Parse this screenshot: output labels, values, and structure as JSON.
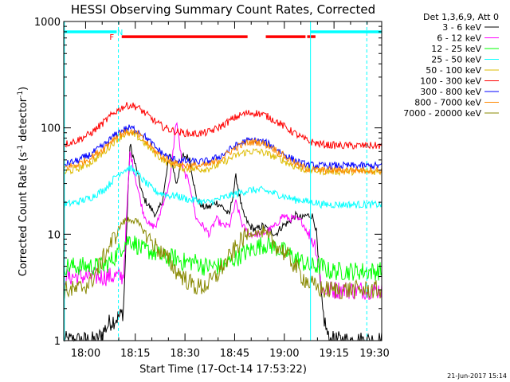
{
  "chart_data": {
    "type": "line",
    "title": "HESSI Observing Summary Count Rates, Corrected",
    "xlabel": "Start Time (17-Oct-14 17:53:22)",
    "ylabel": "Corrected Count Rate (s",
    "ylabel_sup1": "-1",
    "ylabel_mid": " detector",
    "ylabel_sup2": "-1",
    "ylabel_end": ")",
    "x_unit": "minutes since 17:53:22",
    "xlim": [
      0,
      96
    ],
    "ylim": [
      1,
      1000
    ],
    "yscale": "log",
    "x_ticks": [
      {
        "label": "18:00",
        "x": 6.6
      },
      {
        "label": "18:15",
        "x": 21.6
      },
      {
        "label": "18:30",
        "x": 36.6
      },
      {
        "label": "18:45",
        "x": 51.6
      },
      {
        "label": "19:00",
        "x": 66.6
      },
      {
        "label": "19:15",
        "x": 81.6
      },
      {
        "label": "19:30",
        "x": 96.6
      }
    ],
    "y_ticks": [
      {
        "label": "1",
        "y": 1
      },
      {
        "label": "10",
        "y": 10
      },
      {
        "label": "100",
        "y": 100
      },
      {
        "label": "1000",
        "y": 1000
      }
    ],
    "legend_header": "Det 1,3,6,9, Att 0",
    "legend_position": "right",
    "series": [
      {
        "name": "3 - 6 keV",
        "color": "#000000",
        "x": [
          0,
          5,
          10,
          14,
          17,
          18,
          20,
          22,
          24,
          26,
          28,
          30,
          32,
          34,
          36,
          38,
          40,
          42,
          44,
          46,
          48,
          50,
          52,
          54,
          56,
          58,
          60,
          62,
          64,
          66,
          68,
          70,
          72,
          73,
          74,
          75,
          76,
          78,
          80,
          82,
          84,
          86,
          88,
          90,
          92,
          94,
          96
        ],
        "y": [
          1,
          1,
          1,
          1.5,
          1.7,
          1.9,
          70,
          40,
          22,
          18,
          15,
          22,
          60,
          30,
          55,
          52,
          22,
          18,
          18,
          20,
          18,
          15,
          35,
          16,
          12,
          11,
          12,
          11,
          10,
          12,
          13,
          15,
          14,
          15,
          15,
          15,
          12,
          2,
          1,
          1,
          1,
          1,
          1,
          1,
          1,
          1,
          1
        ]
      },
      {
        "name": "6 - 12 keV",
        "color": "#ff00ff",
        "x": [
          0,
          5,
          10,
          14,
          17,
          18,
          20,
          22,
          24,
          26,
          28,
          30,
          32,
          34,
          36,
          38,
          40,
          42,
          44,
          46,
          48,
          50,
          52,
          54,
          56,
          58,
          60,
          62,
          64,
          66,
          68,
          70,
          72,
          74,
          75,
          76,
          78,
          80,
          84,
          88,
          92,
          96
        ],
        "y": [
          4,
          4,
          4,
          4,
          4,
          4,
          60,
          30,
          16,
          12,
          12,
          20,
          30,
          120,
          40,
          30,
          14,
          12,
          10,
          14,
          12,
          12,
          20,
          12,
          10,
          10,
          10,
          11,
          12,
          15,
          14,
          14,
          13,
          10,
          9,
          8,
          3,
          3,
          3,
          3,
          3,
          3
        ]
      },
      {
        "name": "12 - 25 keV",
        "color": "#00ff00",
        "x": [
          0,
          4,
          8,
          12,
          14,
          16,
          18,
          20,
          22,
          24,
          26,
          28,
          30,
          32,
          34,
          36,
          38,
          40,
          42,
          44,
          46,
          48,
          50,
          52,
          54,
          56,
          58,
          60,
          62,
          64,
          66,
          68,
          70,
          72,
          74,
          76,
          78,
          80,
          84,
          88,
          92,
          96
        ],
        "y": [
          5,
          5,
          5,
          5,
          5.5,
          6.5,
          8,
          9,
          8,
          7,
          7,
          6.5,
          6,
          6,
          6,
          5.5,
          5.5,
          5.5,
          5,
          5,
          5,
          5,
          5.5,
          6,
          6.5,
          7,
          7.5,
          8,
          8,
          7.5,
          7,
          6.5,
          6,
          5.5,
          5,
          5,
          5,
          4.5,
          4.5,
          4.5,
          4.5,
          4.5
        ]
      },
      {
        "name": "25 - 50 keV",
        "color": "#00ffff",
        "x": [
          0,
          4,
          8,
          12,
          14,
          16,
          18,
          20,
          22,
          24,
          26,
          28,
          30,
          32,
          34,
          36,
          38,
          40,
          42,
          44,
          46,
          48,
          50,
          52,
          54,
          56,
          58,
          60,
          62,
          64,
          66,
          68,
          70,
          72,
          74,
          76,
          78,
          80,
          84,
          88,
          92,
          96
        ],
        "y": [
          19,
          20,
          22,
          26,
          30,
          36,
          40,
          42,
          38,
          32,
          28,
          25,
          24,
          23,
          23,
          22,
          21,
          21,
          20,
          20,
          21,
          22,
          23,
          24,
          25,
          26,
          26,
          26,
          25,
          24,
          23,
          22,
          21,
          21,
          20,
          20,
          19,
          19,
          19,
          19,
          19,
          19
        ]
      },
      {
        "name": "50 - 100 keV",
        "color": "#ddbb00",
        "x": [
          0,
          4,
          8,
          12,
          14,
          16,
          18,
          20,
          22,
          24,
          26,
          28,
          30,
          32,
          34,
          36,
          38,
          40,
          42,
          44,
          46,
          48,
          50,
          52,
          54,
          56,
          58,
          60,
          62,
          64,
          66,
          68,
          70,
          72,
          74,
          76,
          78,
          80,
          84,
          88,
          92,
          96
        ],
        "y": [
          38,
          41,
          47,
          58,
          68,
          78,
          86,
          88,
          84,
          74,
          64,
          56,
          50,
          46,
          44,
          42,
          41,
          41,
          41,
          42,
          44,
          47,
          51,
          55,
          58,
          60,
          60,
          59,
          56,
          53,
          50,
          46,
          43,
          41,
          40,
          40,
          39,
          39,
          39,
          39,
          39,
          39
        ]
      },
      {
        "name": "100 - 300 keV",
        "color": "#ff0000",
        "x": [
          0,
          4,
          8,
          12,
          14,
          16,
          18,
          20,
          22,
          24,
          26,
          28,
          30,
          32,
          34,
          36,
          38,
          40,
          42,
          44,
          46,
          48,
          50,
          52,
          54,
          56,
          58,
          60,
          62,
          64,
          66,
          68,
          70,
          72,
          74,
          76,
          78,
          80,
          84,
          88,
          92,
          96
        ],
        "y": [
          70,
          76,
          88,
          112,
          128,
          145,
          158,
          164,
          158,
          142,
          126,
          112,
          102,
          96,
          92,
          90,
          88,
          88,
          89,
          92,
          98,
          106,
          116,
          126,
          134,
          138,
          138,
          134,
          126,
          116,
          106,
          96,
          88,
          80,
          75,
          72,
          70,
          69,
          68,
          68,
          68,
          68
        ]
      },
      {
        "name": "300 - 800 keV",
        "color": "#0000ff",
        "x": [
          0,
          4,
          8,
          12,
          14,
          16,
          18,
          20,
          22,
          24,
          26,
          28,
          30,
          32,
          34,
          36,
          38,
          40,
          42,
          44,
          46,
          48,
          50,
          52,
          54,
          56,
          58,
          60,
          62,
          64,
          66,
          68,
          70,
          72,
          74,
          76,
          78,
          80,
          84,
          88,
          92,
          96
        ],
        "y": [
          45,
          49,
          56,
          68,
          78,
          88,
          96,
          100,
          96,
          86,
          74,
          64,
          57,
          52,
          50,
          49,
          48,
          48,
          48,
          49,
          52,
          56,
          62,
          68,
          73,
          76,
          76,
          74,
          70,
          64,
          58,
          53,
          49,
          46,
          45,
          44,
          44,
          44,
          44,
          44,
          44,
          44
        ]
      },
      {
        "name": "800 - 7000 keV",
        "color": "#ff8800",
        "x": [
          0,
          4,
          8,
          12,
          14,
          16,
          18,
          20,
          22,
          24,
          26,
          28,
          30,
          32,
          34,
          36,
          38,
          40,
          42,
          44,
          46,
          48,
          50,
          52,
          54,
          56,
          58,
          60,
          62,
          64,
          66,
          68,
          70,
          72,
          74,
          76,
          78,
          80,
          84,
          88,
          92,
          96
        ],
        "y": [
          42,
          45,
          52,
          64,
          74,
          84,
          90,
          92,
          88,
          78,
          68,
          59,
          53,
          49,
          46,
          45,
          44,
          44,
          44,
          45,
          48,
          53,
          59,
          65,
          70,
          73,
          74,
          72,
          68,
          62,
          56,
          50,
          46,
          43,
          41,
          40,
          40,
          40,
          40,
          40,
          40,
          40
        ]
      },
      {
        "name": "7000 - 20000 keV",
        "color": "#888800",
        "x": [
          0,
          4,
          8,
          10,
          12,
          14,
          16,
          17,
          18,
          20,
          22,
          24,
          26,
          28,
          30,
          32,
          34,
          36,
          38,
          40,
          42,
          44,
          46,
          48,
          50,
          52,
          54,
          56,
          58,
          60,
          62,
          64,
          66,
          68,
          70,
          72,
          74,
          76,
          78,
          80,
          84,
          88,
          92,
          96
        ],
        "y": [
          3,
          3,
          3.5,
          4.5,
          6,
          8,
          10,
          12,
          13,
          14,
          13,
          11,
          9,
          7.5,
          6.5,
          5.5,
          4.5,
          4,
          3.5,
          3.2,
          3.2,
          3.5,
          4,
          5,
          6,
          7.5,
          9,
          10,
          10.5,
          10,
          9,
          8,
          7,
          6,
          5,
          4,
          3.5,
          3.2,
          3,
          3,
          3,
          3,
          3,
          3
        ]
      }
    ],
    "state_bars": [
      {
        "label": "N",
        "color": "#00ffff",
        "level": 800,
        "segments": [
          [
            0,
            16
          ],
          [
            74.5,
            96
          ]
        ],
        "label_x": 17
      },
      {
        "label": "F",
        "color": "#ff0000",
        "level": 720,
        "segments": [
          [
            17.5,
            55.5
          ],
          [
            61,
            73
          ],
          [
            73.5,
            76
          ]
        ],
        "label_x": 14.5
      }
    ],
    "vlines": [
      {
        "x": 16.5,
        "color": "#00ffff",
        "style": "dashed"
      },
      {
        "x": 74.5,
        "color": "#00ffff",
        "style": "solid"
      },
      {
        "x": 91.5,
        "color": "#00ffff",
        "style": "dashed"
      },
      {
        "x": 0.2,
        "color": "#00ffff",
        "style": "solid"
      }
    ]
  },
  "footer_date": "21-Jun-2017 15:14"
}
